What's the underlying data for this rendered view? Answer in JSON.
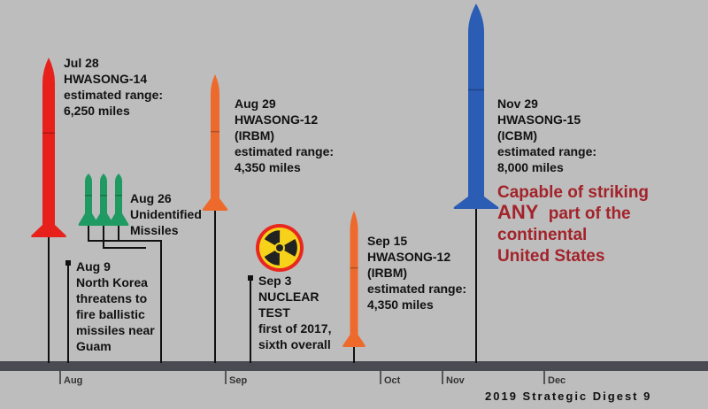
{
  "events": [
    {
      "lines": [
        "Jul 28",
        "HWASONG-14",
        "estimated range:",
        "6,250 miles"
      ]
    },
    {
      "lines": [
        "Aug 26",
        "Unidentified",
        "Missiles"
      ]
    },
    {
      "lines": [
        "Aug 9",
        "North Korea",
        "threatens to",
        "fire ballistic",
        "missiles near",
        "Guam"
      ]
    },
    {
      "lines": [
        "Aug 29",
        "HWASONG-12",
        "(IRBM)",
        "estimated range:",
        "4,350 miles"
      ]
    },
    {
      "lines": [
        "Sep 3",
        "NUCLEAR",
        "TEST",
        "first of 2017,",
        "sixth overall"
      ]
    },
    {
      "lines": [
        "Sep 15",
        "HWASONG-12",
        "(IRBM)",
        "estimated range:",
        "4,350 miles"
      ]
    },
    {
      "lines": [
        "Nov 29",
        "HWASONG-15",
        "(ICBM)",
        "estimated range:",
        "8,000 miles"
      ]
    }
  ],
  "callout": {
    "line1": "Capable of striking",
    "emphasis": "ANY",
    "line2_rest": "part of the",
    "line3": "continental",
    "line4": "United States"
  },
  "months": [
    "Aug",
    "Sep",
    "Oct",
    "Nov",
    "Dec"
  ],
  "footer": "2019 Strategic Digest 9"
}
